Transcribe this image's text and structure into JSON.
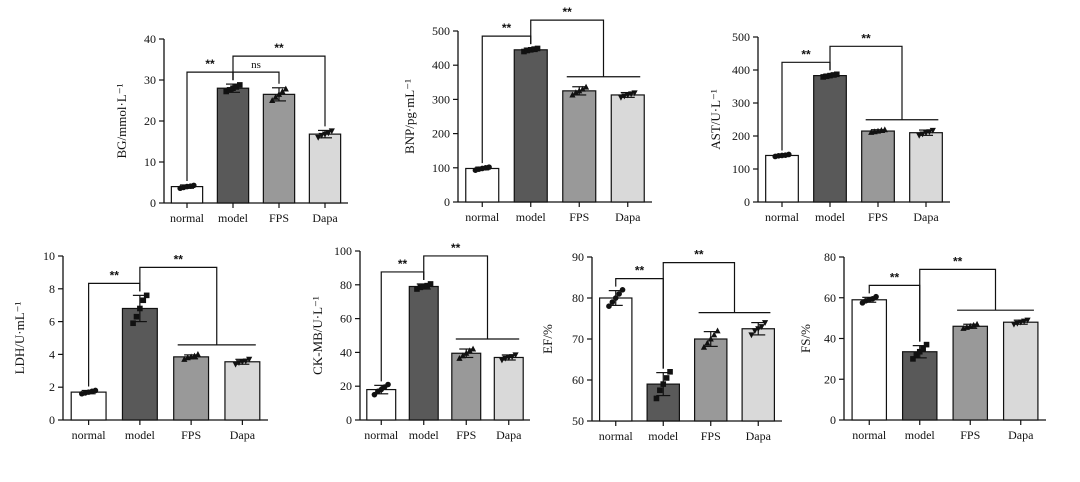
{
  "chart_data": [
    {
      "type": "bar",
      "categories": [
        "normal",
        "model",
        "FPS",
        "Dapa"
      ],
      "values": [
        4.0,
        28.0,
        26.5,
        16.8
      ],
      "errors": [
        0.4,
        1.0,
        1.6,
        0.9
      ],
      "points": [
        [
          3.6,
          3.8,
          4.0,
          4.1,
          4.3
        ],
        [
          27.2,
          27.6,
          28.0,
          28.3,
          28.8
        ],
        [
          25.0,
          25.8,
          26.5,
          27.2,
          27.8
        ],
        [
          16.0,
          16.5,
          16.8,
          17.1,
          17.6
        ]
      ],
      "ylabel": "BG/mmol·L⁻¹",
      "ylim": [
        0,
        40
      ],
      "yticks": [
        0,
        10,
        20,
        30,
        40
      ],
      "bar_colors": [
        "#ffffff",
        "#595959",
        "#999999",
        "#d9d9d9"
      ],
      "point_markers": [
        "circle",
        "square",
        "triangle",
        "triangle-down"
      ],
      "significance": [
        {
          "from": 0,
          "to": [
            1
          ],
          "label": "**"
        },
        {
          "from": 1,
          "to": [
            2
          ],
          "label": "ns"
        },
        {
          "from": 1,
          "to": [
            3
          ],
          "label": "**"
        }
      ]
    },
    {
      "type": "bar",
      "categories": [
        "normal",
        "model",
        "FPS",
        "Dapa"
      ],
      "values": [
        98,
        445,
        325,
        313
      ],
      "errors": [
        4,
        5,
        12,
        7
      ],
      "points": [
        [
          93,
          96,
          98,
          100,
          102
        ],
        [
          440,
          443,
          445,
          447,
          449
        ],
        [
          313,
          320,
          325,
          330,
          336
        ],
        [
          306,
          310,
          313,
          316,
          319
        ]
      ],
      "ylabel": "BNP/pg·mL⁻¹",
      "ylim": [
        0,
        500
      ],
      "yticks": [
        0,
        100,
        200,
        300,
        400,
        500
      ],
      "bar_colors": [
        "#ffffff",
        "#595959",
        "#999999",
        "#d9d9d9"
      ],
      "point_markers": [
        "circle",
        "square",
        "triangle",
        "triangle-down"
      ],
      "significance": [
        {
          "from": 0,
          "to": [
            1
          ],
          "label": "**"
        },
        {
          "from": 1,
          "to": [
            2,
            3
          ],
          "label": "**"
        }
      ]
    },
    {
      "type": "bar",
      "categories": [
        "normal",
        "model",
        "FPS",
        "Dapa"
      ],
      "values": [
        141,
        383,
        215,
        210
      ],
      "errors": [
        3,
        4,
        4,
        8
      ],
      "points": [
        [
          138,
          140,
          141,
          142,
          144
        ],
        [
          379,
          381,
          383,
          385,
          387
        ],
        [
          211,
          213,
          215,
          217,
          219
        ],
        [
          202,
          206,
          210,
          213,
          217
        ]
      ],
      "ylabel": "AST/U·L⁻¹",
      "ylim": [
        0,
        500
      ],
      "yticks": [
        0,
        100,
        200,
        300,
        400,
        500
      ],
      "bar_colors": [
        "#ffffff",
        "#595959",
        "#999999",
        "#d9d9d9"
      ],
      "point_markers": [
        "circle",
        "square",
        "triangle",
        "triangle-down"
      ],
      "significance": [
        {
          "from": 0,
          "to": [
            1
          ],
          "label": "**"
        },
        {
          "from": 1,
          "to": [
            2,
            3
          ],
          "label": "**"
        }
      ]
    },
    {
      "type": "bar",
      "categories": [
        "normal",
        "model",
        "FPS",
        "Dapa"
      ],
      "values": [
        1.7,
        6.8,
        3.85,
        3.55
      ],
      "errors": [
        0.1,
        0.8,
        0.12,
        0.15
      ],
      "points": [
        [
          1.6,
          1.65,
          1.7,
          1.75,
          1.8
        ],
        [
          5.9,
          6.3,
          6.8,
          7.3,
          7.6
        ],
        [
          3.7,
          3.8,
          3.85,
          3.9,
          4.0
        ],
        [
          3.4,
          3.5,
          3.55,
          3.6,
          3.7
        ]
      ],
      "ylabel": "LDH/U·mL⁻¹",
      "ylim": [
        0,
        10
      ],
      "yticks": [
        0,
        2,
        4,
        6,
        8,
        10
      ],
      "bar_colors": [
        "#ffffff",
        "#595959",
        "#999999",
        "#d9d9d9"
      ],
      "point_markers": [
        "circle",
        "square",
        "triangle",
        "triangle-down"
      ],
      "significance": [
        {
          "from": 0,
          "to": [
            1
          ],
          "label": "**"
        },
        {
          "from": 1,
          "to": [
            2,
            3
          ],
          "label": "**"
        }
      ]
    },
    {
      "type": "bar",
      "categories": [
        "normal",
        "model",
        "FPS",
        "Dapa"
      ],
      "values": [
        18,
        79,
        39.5,
        37
      ],
      "errors": [
        2.5,
        1.5,
        2.5,
        1.5
      ],
      "points": [
        [
          15,
          17,
          18,
          19.5,
          21
        ],
        [
          77.5,
          78.5,
          79,
          79.5,
          80.5
        ],
        [
          36.5,
          38,
          39.5,
          41,
          42
        ],
        [
          35.5,
          36.5,
          37,
          37.5,
          38.5
        ]
      ],
      "ylabel": "CK-MB/U·L⁻¹",
      "ylim": [
        0,
        100
      ],
      "yticks": [
        0,
        20,
        40,
        60,
        80,
        100
      ],
      "bar_colors": [
        "#ffffff",
        "#595959",
        "#999999",
        "#d9d9d9"
      ],
      "point_markers": [
        "circle",
        "square",
        "triangle",
        "triangle-down"
      ],
      "significance": [
        {
          "from": 0,
          "to": [
            1
          ],
          "label": "**"
        },
        {
          "from": 1,
          "to": [
            2,
            3
          ],
          "label": "**"
        }
      ]
    },
    {
      "type": "bar",
      "categories": [
        "normal",
        "model",
        "FPS",
        "Dapa"
      ],
      "values": [
        80,
        59,
        70,
        72.5
      ],
      "errors": [
        1.8,
        2.8,
        1.8,
        1.5
      ],
      "points": [
        [
          78,
          79,
          80,
          81,
          82
        ],
        [
          55.5,
          57.5,
          59,
          60.5,
          62
        ],
        [
          68,
          69,
          70,
          71,
          72
        ],
        [
          71,
          72,
          72.5,
          73,
          74
        ]
      ],
      "ylabel": "EF/%",
      "ylim": [
        50,
        90
      ],
      "yticks": [
        50,
        60,
        70,
        80,
        90
      ],
      "bar_colors": [
        "#ffffff",
        "#595959",
        "#999999",
        "#d9d9d9"
      ],
      "point_markers": [
        "circle",
        "square",
        "triangle",
        "triangle-down"
      ],
      "significance": [
        {
          "from": 0,
          "to": [
            1
          ],
          "label": "**"
        },
        {
          "from": 1,
          "to": [
            2,
            3
          ],
          "label": "**"
        }
      ]
    },
    {
      "type": "bar",
      "categories": [
        "normal",
        "model",
        "FPS",
        "Dapa"
      ],
      "values": [
        59,
        33.5,
        46,
        48
      ],
      "errors": [
        1.2,
        3.0,
        1.0,
        1.0
      ],
      "points": [
        [
          57.5,
          58.5,
          59,
          59.5,
          60.5
        ],
        [
          30,
          32,
          33.5,
          35,
          37
        ],
        [
          45,
          45.5,
          46,
          46.5,
          47
        ],
        [
          47,
          47.5,
          48,
          48.5,
          49
        ]
      ],
      "ylabel": "FS/%",
      "ylim": [
        0,
        80
      ],
      "yticks": [
        0,
        20,
        40,
        60,
        80
      ],
      "bar_colors": [
        "#ffffff",
        "#595959",
        "#999999",
        "#d9d9d9"
      ],
      "point_markers": [
        "circle",
        "square",
        "triangle",
        "triangle-down"
      ],
      "significance": [
        {
          "from": 0,
          "to": [
            1
          ],
          "label": "**"
        },
        {
          "from": 1,
          "to": [
            2,
            3
          ],
          "label": "**"
        }
      ]
    }
  ]
}
